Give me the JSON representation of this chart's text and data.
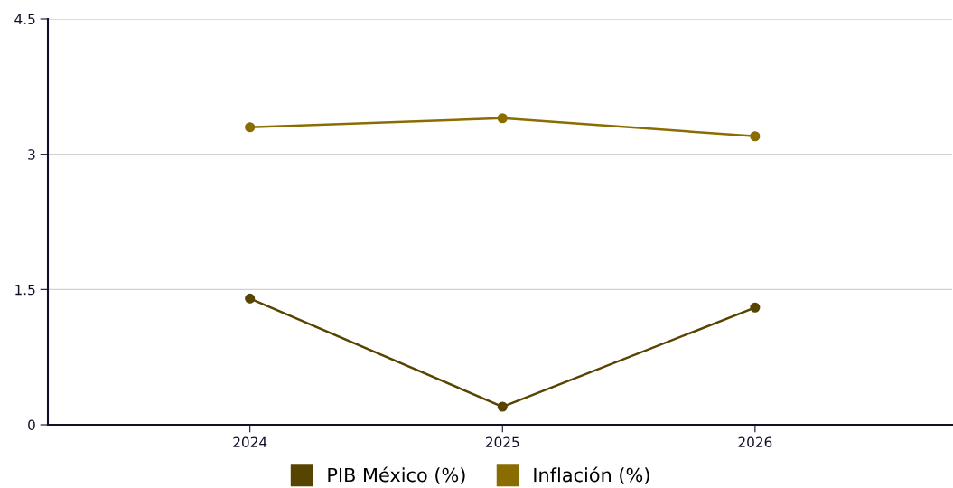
{
  "chart_data": {
    "type": "line",
    "categories": [
      "2024",
      "2025",
      "2026"
    ],
    "series": [
      {
        "name": "PIB México (%)",
        "color": "#574400",
        "values": [
          1.4,
          0.2,
          1.3
        ]
      },
      {
        "name": "Inflación (%)",
        "color": "#8a6d00",
        "values": [
          3.3,
          3.4,
          3.2
        ]
      }
    ],
    "ylim": [
      0,
      4.5
    ],
    "yticks": [
      0,
      1.5,
      3,
      4.5
    ],
    "grid": "y",
    "legend": "bottom",
    "marker": "circle",
    "line_style": "solid"
  }
}
